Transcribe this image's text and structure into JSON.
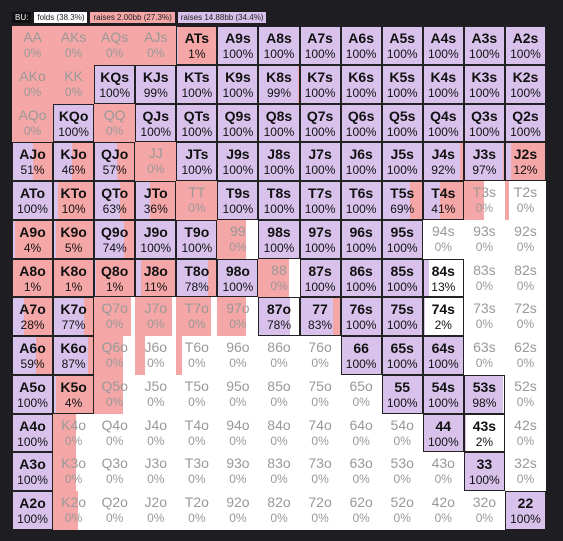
{
  "legend": {
    "position": "BU:",
    "folds": "folds (38.3%)",
    "raise_small": "raises 2.00bb (27.3%)",
    "raise_big": "raises 14.88bb (34.4%)"
  },
  "colors": {
    "raise_big": "#d8c2ec",
    "raise_small": "#f5a6a6",
    "fold": "#ffffff"
  },
  "grid": {
    "rows": [
      [
        [
          "AA",
          "0%",
          0,
          100
        ],
        [
          "AKs",
          "0%",
          0,
          100
        ],
        [
          "AQs",
          "0%",
          0,
          100
        ],
        [
          "AJs",
          "0%",
          0,
          100
        ],
        [
          "ATs",
          "1%",
          1,
          99
        ],
        [
          "A9s",
          "100%",
          100,
          0
        ],
        [
          "A8s",
          "100%",
          100,
          0
        ],
        [
          "A7s",
          "100%",
          100,
          0
        ],
        [
          "A6s",
          "100%",
          100,
          0
        ],
        [
          "A5s",
          "100%",
          100,
          0
        ],
        [
          "A4s",
          "100%",
          100,
          0
        ],
        [
          "A3s",
          "100%",
          100,
          0
        ],
        [
          "A2s",
          "100%",
          100,
          0
        ]
      ],
      [
        [
          "AKo",
          "0%",
          0,
          100
        ],
        [
          "KK",
          "0%",
          0,
          100
        ],
        [
          "KQs",
          "100%",
          100,
          0
        ],
        [
          "KJs",
          "99%",
          99,
          1
        ],
        [
          "KTs",
          "100%",
          100,
          0
        ],
        [
          "K9s",
          "100%",
          100,
          0
        ],
        [
          "K8s",
          "99%",
          99,
          1
        ],
        [
          "K7s",
          "100%",
          100,
          0
        ],
        [
          "K6s",
          "100%",
          100,
          0
        ],
        [
          "K5s",
          "100%",
          100,
          0
        ],
        [
          "K4s",
          "100%",
          100,
          0
        ],
        [
          "K3s",
          "100%",
          100,
          0
        ],
        [
          "K2s",
          "100%",
          100,
          0
        ]
      ],
      [
        [
          "AQo",
          "0%",
          0,
          100
        ],
        [
          "KQo",
          "100%",
          100,
          0
        ],
        [
          "QQ",
          "0%",
          0,
          100
        ],
        [
          "QJs",
          "100%",
          100,
          0
        ],
        [
          "QTs",
          "100%",
          100,
          0
        ],
        [
          "Q9s",
          "100%",
          100,
          0
        ],
        [
          "Q8s",
          "100%",
          100,
          0
        ],
        [
          "Q7s",
          "100%",
          100,
          0
        ],
        [
          "Q6s",
          "100%",
          100,
          0
        ],
        [
          "Q5s",
          "100%",
          100,
          0
        ],
        [
          "Q4s",
          "100%",
          100,
          0
        ],
        [
          "Q3s",
          "100%",
          100,
          0
        ],
        [
          "Q2s",
          "100%",
          100,
          0
        ]
      ],
      [
        [
          "AJo",
          "51%",
          51,
          49
        ],
        [
          "KJo",
          "46%",
          46,
          54
        ],
        [
          "QJo",
          "57%",
          57,
          43
        ],
        [
          "JJ",
          "0%",
          0,
          100
        ],
        [
          "JTs",
          "100%",
          100,
          0
        ],
        [
          "J9s",
          "100%",
          100,
          0
        ],
        [
          "J8s",
          "100%",
          100,
          0
        ],
        [
          "J7s",
          "100%",
          100,
          0
        ],
        [
          "J6s",
          "100%",
          100,
          0
        ],
        [
          "J5s",
          "100%",
          100,
          0
        ],
        [
          "J4s",
          "92%",
          92,
          8
        ],
        [
          "J3s",
          "97%",
          97,
          3
        ],
        [
          "J2s",
          "12%",
          12,
          88
        ]
      ],
      [
        [
          "ATo",
          "100%",
          100,
          0
        ],
        [
          "KTo",
          "10%",
          10,
          90
        ],
        [
          "QTo",
          "63%",
          63,
          37
        ],
        [
          "JTo",
          "36%",
          36,
          64
        ],
        [
          "TT",
          "0%",
          0,
          100
        ],
        [
          "T9s",
          "100%",
          100,
          0
        ],
        [
          "T8s",
          "100%",
          100,
          0
        ],
        [
          "T7s",
          "100%",
          100,
          0
        ],
        [
          "T6s",
          "100%",
          100,
          0
        ],
        [
          "T5s",
          "69%",
          69,
          31
        ],
        [
          "T4s",
          "41%",
          41,
          59
        ],
        [
          "T3s",
          "0%",
          0,
          50
        ],
        [
          "T2s",
          "0%",
          0,
          10
        ]
      ],
      [
        [
          "A9o",
          "4%",
          4,
          96
        ],
        [
          "K9o",
          "5%",
          5,
          95
        ],
        [
          "Q9o",
          "74%",
          74,
          26
        ],
        [
          "J9o",
          "100%",
          100,
          0
        ],
        [
          "T9o",
          "100%",
          100,
          0
        ],
        [
          "99",
          "0%",
          0,
          70
        ],
        [
          "98s",
          "100%",
          100,
          0
        ],
        [
          "97s",
          "100%",
          100,
          0
        ],
        [
          "96s",
          "100%",
          100,
          0
        ],
        [
          "95s",
          "100%",
          100,
          0
        ],
        [
          "94s",
          "0%",
          0,
          0
        ],
        [
          "93s",
          "0%",
          0,
          0
        ],
        [
          "92s",
          "0%",
          0,
          0
        ]
      ],
      [
        [
          "A8o",
          "1%",
          1,
          99
        ],
        [
          "K8o",
          "1%",
          1,
          99
        ],
        [
          "Q8o",
          "1%",
          1,
          99
        ],
        [
          "J8o",
          "11%",
          11,
          89
        ],
        [
          "T8o",
          "78%",
          78,
          22
        ],
        [
          "98o",
          "100%",
          100,
          0
        ],
        [
          "88",
          "0%",
          0,
          75
        ],
        [
          "87s",
          "100%",
          100,
          0
        ],
        [
          "86s",
          "100%",
          100,
          0
        ],
        [
          "85s",
          "100%",
          100,
          0
        ],
        [
          "84s",
          "13%",
          13,
          0
        ],
        [
          "83s",
          "0%",
          0,
          0
        ],
        [
          "82s",
          "0%",
          0,
          0
        ]
      ],
      [
        [
          "A7o",
          "28%",
          28,
          72
        ],
        [
          "K7o",
          "77%",
          77,
          23
        ],
        [
          "Q7o",
          "0%",
          0,
          90
        ],
        [
          "J7o",
          "0%",
          0,
          90
        ],
        [
          "T7o",
          "0%",
          0,
          85
        ],
        [
          "97o",
          "0%",
          0,
          70
        ],
        [
          "87o",
          "78%",
          78,
          0
        ],
        [
          "77",
          "83%",
          83,
          17
        ],
        [
          "76s",
          "100%",
          100,
          0
        ],
        [
          "75s",
          "100%",
          100,
          0
        ],
        [
          "74s",
          "2%",
          2,
          0
        ],
        [
          "73s",
          "0%",
          0,
          0
        ],
        [
          "72s",
          "0%",
          0,
          0
        ]
      ],
      [
        [
          "A6o",
          "59%",
          59,
          41
        ],
        [
          "K6o",
          "87%",
          87,
          13
        ],
        [
          "Q6o",
          "0%",
          0,
          70
        ],
        [
          "J6o",
          "0%",
          0,
          25
        ],
        [
          "T6o",
          "0%",
          0,
          15
        ],
        [
          "96o",
          "0%",
          0,
          0
        ],
        [
          "86o",
          "0%",
          0,
          0
        ],
        [
          "76o",
          "0%",
          0,
          0
        ],
        [
          "66",
          "100%",
          100,
          0
        ],
        [
          "65s",
          "100%",
          100,
          0
        ],
        [
          "64s",
          "100%",
          100,
          0
        ],
        [
          "63s",
          "0%",
          0,
          0
        ],
        [
          "62s",
          "0%",
          0,
          0
        ]
      ],
      [
        [
          "A5o",
          "100%",
          100,
          0
        ],
        [
          "K5o",
          "4%",
          4,
          96
        ],
        [
          "Q5o",
          "0%",
          0,
          70
        ],
        [
          "J5o",
          "0%",
          0,
          0
        ],
        [
          "T5o",
          "0%",
          0,
          0
        ],
        [
          "95o",
          "0%",
          0,
          0
        ],
        [
          "85o",
          "0%",
          0,
          0
        ],
        [
          "75o",
          "0%",
          0,
          0
        ],
        [
          "65o",
          "0%",
          0,
          0
        ],
        [
          "55",
          "100%",
          100,
          0
        ],
        [
          "54s",
          "100%",
          100,
          0
        ],
        [
          "53s",
          "98%",
          98,
          0
        ],
        [
          "52s",
          "0%",
          0,
          0
        ]
      ],
      [
        [
          "A4o",
          "100%",
          100,
          0
        ],
        [
          "K4o",
          "0%",
          0,
          55
        ],
        [
          "Q4o",
          "0%",
          0,
          0
        ],
        [
          "J4o",
          "0%",
          0,
          0
        ],
        [
          "T4o",
          "0%",
          0,
          0
        ],
        [
          "94o",
          "0%",
          0,
          0
        ],
        [
          "84o",
          "0%",
          0,
          0
        ],
        [
          "74o",
          "0%",
          0,
          0
        ],
        [
          "64o",
          "0%",
          0,
          0
        ],
        [
          "54o",
          "0%",
          0,
          0
        ],
        [
          "44",
          "100%",
          100,
          0
        ],
        [
          "43s",
          "2%",
          2,
          0
        ],
        [
          "42s",
          "0%",
          0,
          0
        ]
      ],
      [
        [
          "A3o",
          "100%",
          100,
          0
        ],
        [
          "K3o",
          "0%",
          0,
          55
        ],
        [
          "Q3o",
          "0%",
          0,
          0
        ],
        [
          "J3o",
          "0%",
          0,
          0
        ],
        [
          "T3o",
          "0%",
          0,
          0
        ],
        [
          "93o",
          "0%",
          0,
          0
        ],
        [
          "83o",
          "0%",
          0,
          0
        ],
        [
          "73o",
          "0%",
          0,
          0
        ],
        [
          "63o",
          "0%",
          0,
          0
        ],
        [
          "53o",
          "0%",
          0,
          0
        ],
        [
          "43o",
          "0%",
          0,
          0
        ],
        [
          "33",
          "100%",
          100,
          0
        ],
        [
          "32s",
          "0%",
          0,
          0
        ]
      ],
      [
        [
          "A2o",
          "100%",
          100,
          0
        ],
        [
          "K2o",
          "0%",
          0,
          60
        ],
        [
          "Q2o",
          "0%",
          0,
          0
        ],
        [
          "J2o",
          "0%",
          0,
          0
        ],
        [
          "T2o",
          "0%",
          0,
          0
        ],
        [
          "92o",
          "0%",
          0,
          0
        ],
        [
          "82o",
          "0%",
          0,
          0
        ],
        [
          "72o",
          "0%",
          0,
          0
        ],
        [
          "62o",
          "0%",
          0,
          0
        ],
        [
          "52o",
          "0%",
          0,
          0
        ],
        [
          "42o",
          "0%",
          0,
          0
        ],
        [
          "32o",
          "0%",
          0,
          0
        ],
        [
          "22",
          "100%",
          100,
          0
        ]
      ]
    ]
  }
}
